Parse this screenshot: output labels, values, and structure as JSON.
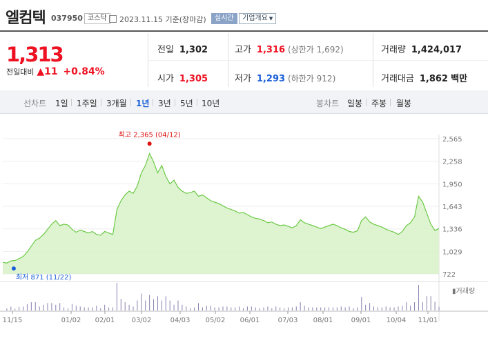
{
  "header": {
    "name": "엘컴텍",
    "code": "037950",
    "market": "코스닥",
    "date_text": "2023.11.15 기준(장마감)",
    "live_label": "실시간",
    "company_label": "기업개요"
  },
  "summary": {
    "price": "1,313",
    "change_label": "전일대비",
    "change_value": "11",
    "change_rate": "+0.84%",
    "prev_close_label": "전일",
    "prev_close": "1,302",
    "high_label": "고가",
    "high": "1,316",
    "upper_limit": "(상한가 1,692)",
    "volume_label": "거래량",
    "volume": "1,424,017",
    "open_label": "시가",
    "open": "1,305",
    "low_label": "저가",
    "low": "1,293",
    "lower_limit": "(하한가 912)",
    "amount_label": "거래대금",
    "amount": "1,862",
    "amount_unit": "백만"
  },
  "toolbar": {
    "line_head": "선차트",
    "line_periods": [
      "1일",
      "1주일",
      "3개월",
      "1년",
      "3년",
      "5년",
      "10년"
    ],
    "active_period": "1년",
    "candle_head": "봉차트",
    "candle_periods": [
      "일봉",
      "주봉",
      "월봉"
    ]
  },
  "colors": {
    "up": "#ee1122",
    "down": "#1a5fd8",
    "line": "#6bc945",
    "area": "#d8f2c9",
    "volume": "#8a7fb0"
  },
  "chart_data": {
    "type": "area",
    "y_ticks": [
      "2,565",
      "2,258",
      "1,950",
      "1,643",
      "1,336",
      "1,029",
      "722"
    ],
    "ylim": [
      722,
      2565
    ],
    "x_ticks": [
      "11/15",
      "01/02",
      "02/01",
      "03/02",
      "04/03",
      "05/02",
      "06/01",
      "07/03",
      "08/01",
      "09/01",
      "10/04",
      "11/01"
    ],
    "max_label": "최고 2,365 (04/12)",
    "min_label": "최저 871 (11/22)",
    "volume_legend": "거래량",
    "price_series": [
      880,
      871,
      900,
      905,
      930,
      960,
      1020,
      1100,
      1180,
      1210,
      1260,
      1330,
      1400,
      1450,
      1380,
      1400,
      1390,
      1330,
      1290,
      1320,
      1300,
      1280,
      1300,
      1260,
      1250,
      1300,
      1280,
      1260,
      1600,
      1720,
      1800,
      1850,
      1820,
      1920,
      2100,
      2200,
      2365,
      2250,
      2100,
      2200,
      2050,
      1950,
      2000,
      1900,
      1850,
      1820,
      1830,
      1850,
      1780,
      1800,
      1760,
      1720,
      1700,
      1680,
      1650,
      1620,
      1600,
      1580,
      1550,
      1560,
      1530,
      1500,
      1480,
      1470,
      1450,
      1420,
      1430,
      1400,
      1380,
      1390,
      1370,
      1350,
      1380,
      1460,
      1420,
      1400,
      1380,
      1360,
      1340,
      1360,
      1380,
      1400,
      1380,
      1350,
      1330,
      1300,
      1290,
      1310,
      1450,
      1500,
      1430,
      1400,
      1380,
      1360,
      1330,
      1310,
      1290,
      1260,
      1300,
      1380,
      1420,
      1500,
      1780,
      1700,
      1550,
      1400,
      1313,
      1340
    ]
  }
}
